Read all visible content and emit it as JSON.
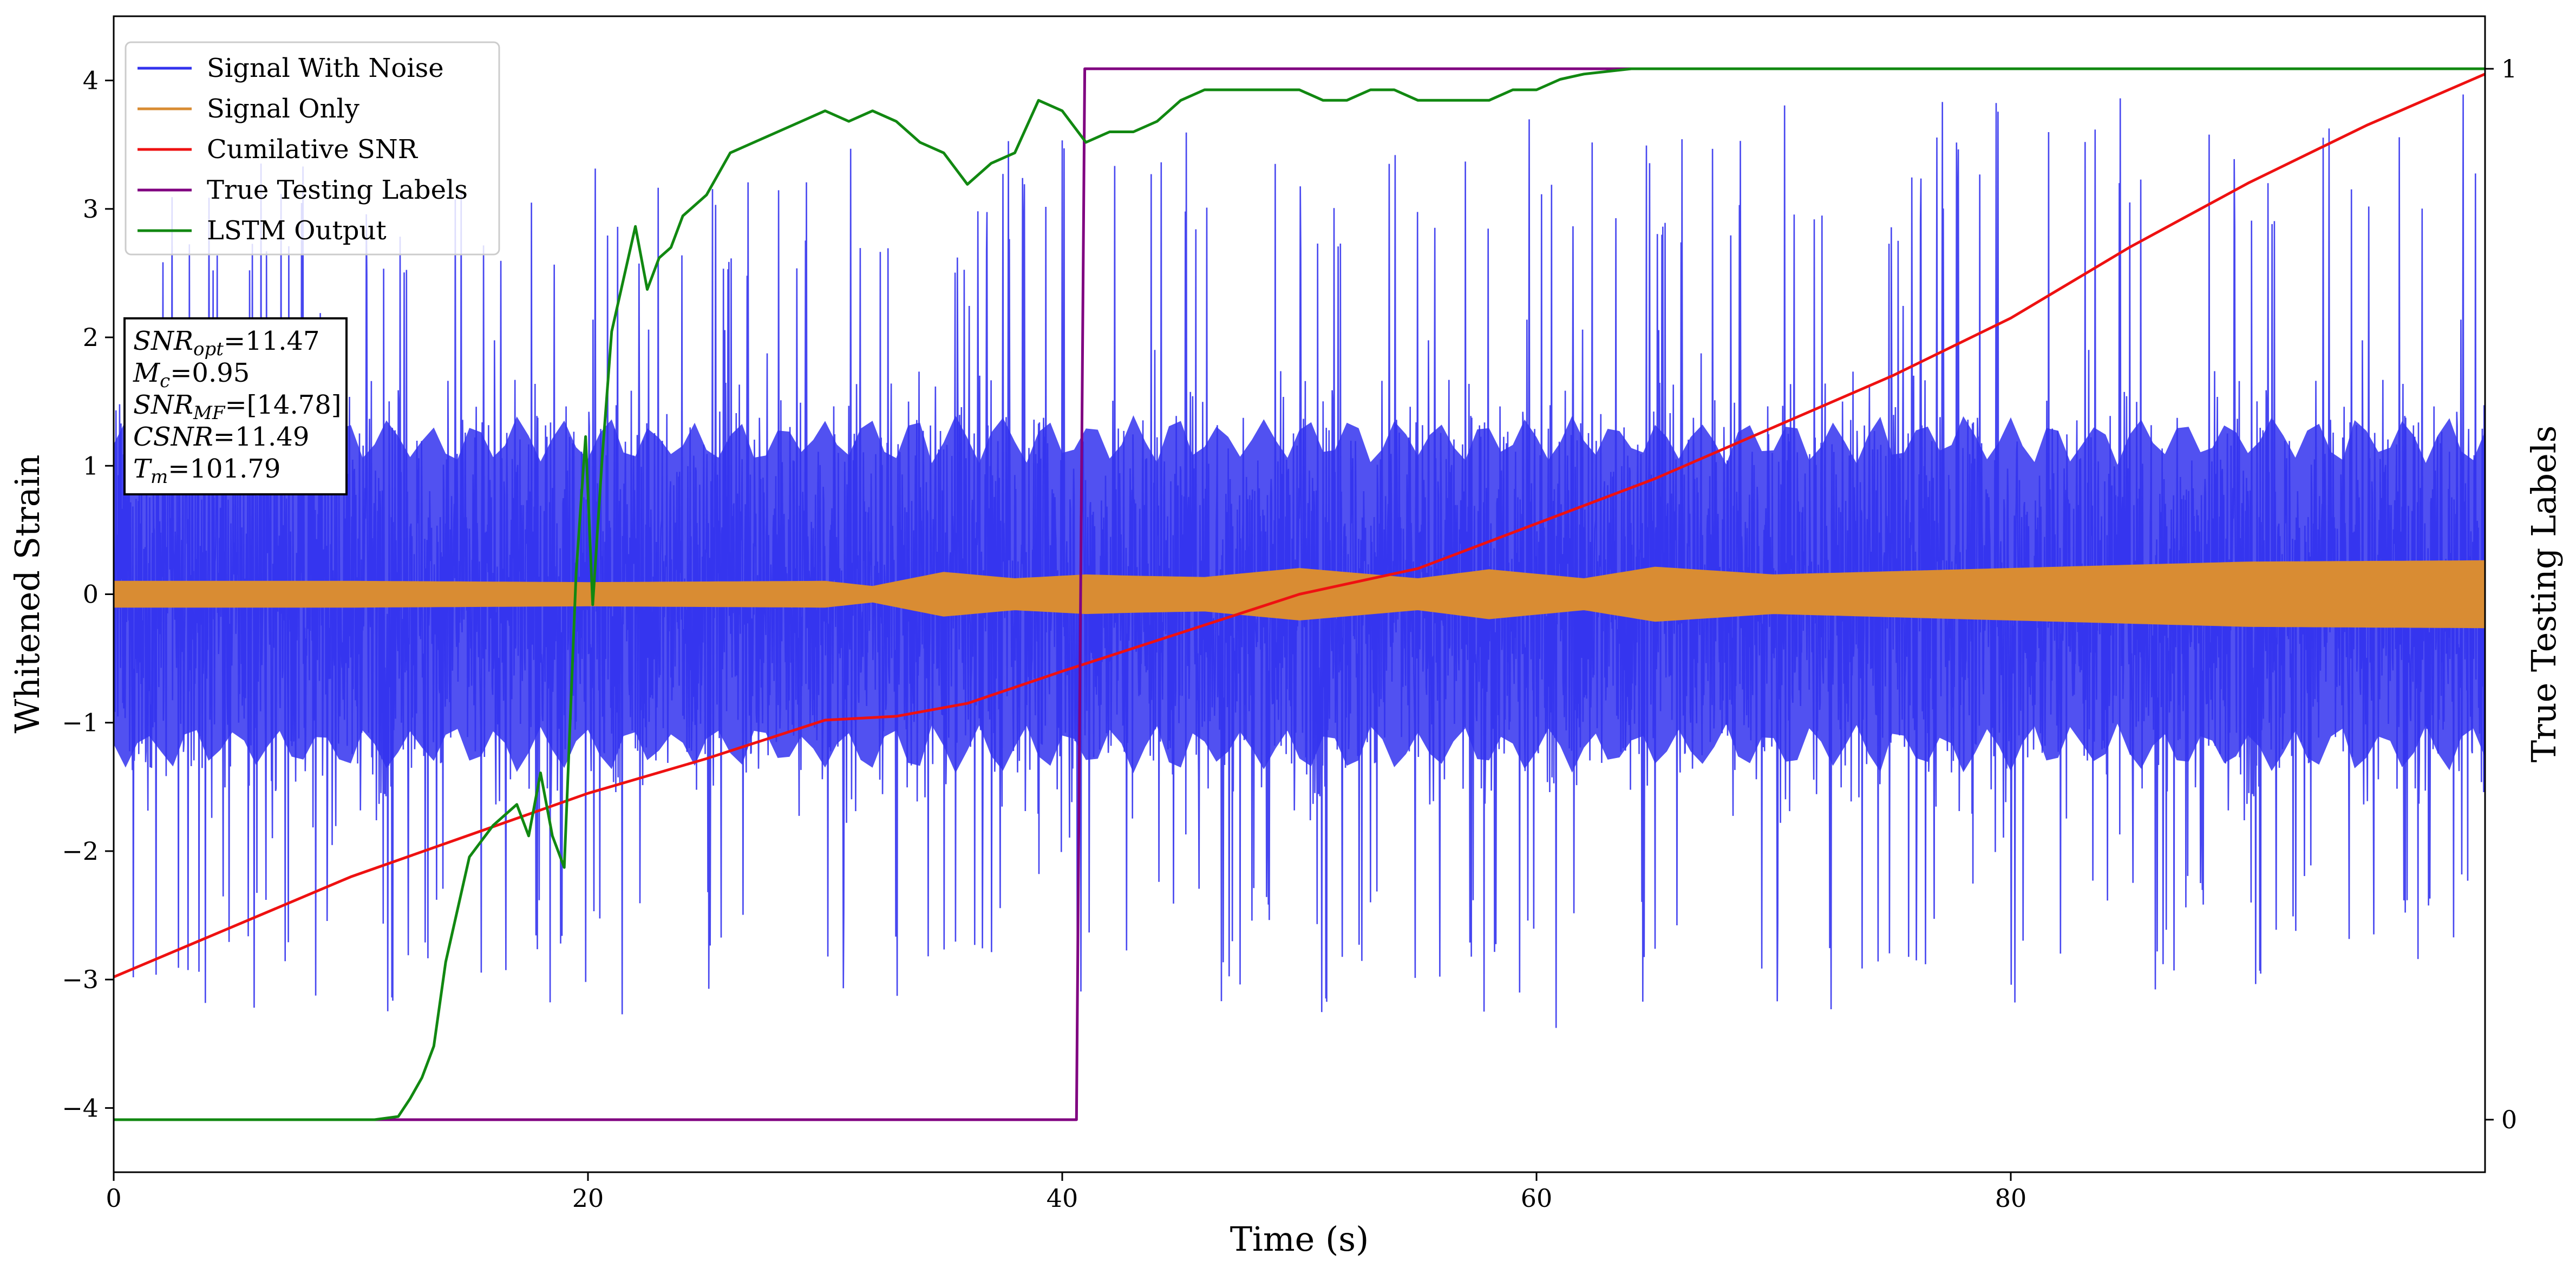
{
  "chart_data": {
    "type": "line",
    "title": "",
    "xlabel": "Time (s)",
    "ylabel_left": "Whitened Strain",
    "ylabel_right": "True Testing Labels",
    "xlim": [
      0,
      100
    ],
    "ylim_left": [
      -4.5,
      4.5
    ],
    "ylim_right": [
      -0.05,
      1.05
    ],
    "x_ticks": [
      0,
      20,
      40,
      60,
      80
    ],
    "y_ticks_left": [
      -4,
      -3,
      -2,
      -1,
      0,
      1,
      2,
      3,
      4
    ],
    "y_ticks_right": [
      0,
      1
    ],
    "grid": false,
    "legend_position": "top-left",
    "colors": {
      "signal_with_noise": "#3333ee",
      "signal_only": "#d98c33",
      "cumulative_snr": "#ee1111",
      "true_labels": "#800080",
      "lstm_output": "#118811"
    },
    "series": [
      {
        "name": "Signal With Noise",
        "axis": "left",
        "noise_envelope": {
          "x": [
            0,
            20,
            40,
            60,
            80,
            100
          ],
          "low": [
            -3.2,
            -3.3,
            -3.1,
            -3.4,
            -3.2,
            -2.9
          ],
          "high": [
            3.5,
            3.4,
            3.6,
            3.8,
            3.9,
            4.0
          ]
        }
      },
      {
        "name": "Signal Only",
        "axis": "left",
        "amplitude_envelope": {
          "x": [
            0,
            10,
            20,
            30,
            32,
            35,
            38,
            41,
            43,
            46,
            50,
            55,
            58,
            62,
            65,
            70,
            80,
            90,
            100
          ],
          "amp": [
            0.1,
            0.1,
            0.09,
            0.1,
            0.06,
            0.17,
            0.12,
            0.15,
            0.14,
            0.13,
            0.2,
            0.12,
            0.19,
            0.12,
            0.21,
            0.15,
            0.2,
            0.25,
            0.26
          ]
        }
      },
      {
        "name": "Cumilative SNR",
        "axis": "left",
        "x": [
          0,
          10,
          20,
          25,
          30,
          33,
          36,
          40,
          45,
          50,
          55,
          60,
          65,
          70,
          75,
          80,
          85,
          90,
          95,
          100
        ],
        "y": [
          -2.98,
          -2.2,
          -1.55,
          -1.28,
          -0.98,
          -0.95,
          -0.85,
          -0.6,
          -0.3,
          0.0,
          0.2,
          0.55,
          0.9,
          1.3,
          1.7,
          2.15,
          2.7,
          3.2,
          3.65,
          4.05
        ]
      },
      {
        "name": "True Testing Labels",
        "axis": "right",
        "x": [
          0,
          40.6,
          40.95,
          100
        ],
        "y": [
          0,
          0,
          1,
          1
        ]
      },
      {
        "name": "LSTM Output",
        "axis": "right",
        "x": [
          0,
          11,
          12,
          12.5,
          13,
          13.5,
          14,
          15,
          16,
          17,
          17.5,
          18,
          18.5,
          19,
          19.5,
          19.9,
          20.2,
          20.6,
          21,
          22,
          22.5,
          23,
          23.5,
          24,
          25,
          26,
          27,
          28,
          29,
          30,
          31,
          32,
          33,
          34,
          35,
          36,
          37,
          38,
          39,
          40,
          41,
          42,
          43,
          44,
          45,
          46,
          47,
          48,
          49,
          50,
          51,
          52,
          53,
          54,
          55,
          56,
          57,
          58,
          59,
          60,
          61,
          62,
          64,
          70,
          76,
          100
        ],
        "y": [
          0,
          0,
          0.003,
          0.02,
          0.04,
          0.07,
          0.15,
          0.25,
          0.28,
          0.3,
          0.27,
          0.33,
          0.27,
          0.24,
          0.52,
          0.65,
          0.49,
          0.63,
          0.75,
          0.85,
          0.79,
          0.82,
          0.83,
          0.86,
          0.88,
          0.92,
          0.93,
          0.94,
          0.95,
          0.96,
          0.95,
          0.96,
          0.95,
          0.93,
          0.92,
          0.89,
          0.91,
          0.92,
          0.97,
          0.96,
          0.93,
          0.94,
          0.94,
          0.95,
          0.97,
          0.98,
          0.98,
          0.98,
          0.98,
          0.98,
          0.97,
          0.97,
          0.98,
          0.98,
          0.97,
          0.97,
          0.97,
          0.97,
          0.98,
          0.98,
          0.99,
          0.995,
          1.0,
          1.0,
          1.0,
          1.0
        ]
      }
    ],
    "annotation": {
      "lines": [
        {
          "name": "SNR",
          "sub": "opt",
          "value": "=11.47"
        },
        {
          "name": "M",
          "sub": "c",
          "value": "=0.95"
        },
        {
          "name": "SNR",
          "sub": "MF",
          "value": "=[14.78]"
        },
        {
          "name": "CSNR",
          "sub": "",
          "value": "=11.49"
        },
        {
          "name": "T",
          "sub": "m",
          "value": "=101.79"
        }
      ]
    }
  }
}
